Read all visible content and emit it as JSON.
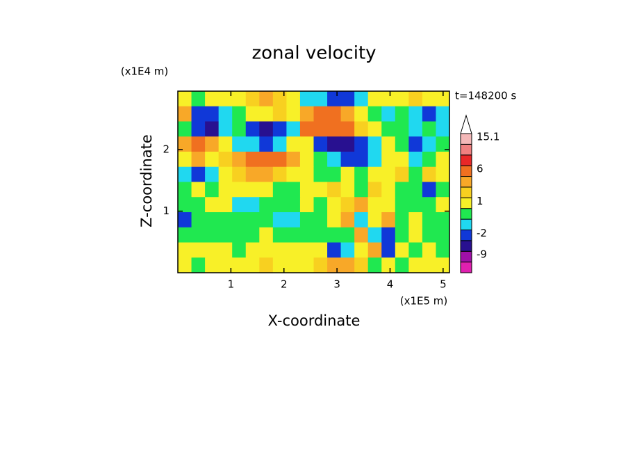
{
  "chart_data": {
    "type": "contour",
    "title": "zonal velocity",
    "x_label": "X-coordinate",
    "y_label": "Z-coordinate",
    "x_unit": "(x1E5 m)",
    "y_unit": "(x1E4 m)",
    "annotation": "t=148200 s",
    "xlim": [
      0,
      5.12
    ],
    "ylim": [
      0,
      2.95
    ],
    "xticks": [
      1,
      2,
      3,
      4,
      5
    ],
    "yticks": [
      1,
      2
    ],
    "levels": [
      -12,
      -9,
      -6,
      -2,
      -1,
      0,
      1,
      2,
      3,
      6,
      9,
      12,
      15.1
    ],
    "colors": [
      "#e020b0",
      "#a010a8",
      "#281090",
      "#1038d8",
      "#20d8f0",
      "#20e850",
      "#f8f028",
      "#f8d020",
      "#f8a828",
      "#f07020",
      "#e82828",
      "#f08080",
      "#f4b8b8",
      "#ffffff"
    ],
    "colorbar_ticks": [
      15.1,
      6,
      1,
      -2,
      -9
    ],
    "z": [
      [
        0.5,
        -0.5,
        0.5,
        0.5,
        0.5,
        1.5,
        2.5,
        1.5,
        0.5,
        -1.5,
        -1.5,
        -4,
        -4,
        -1.5,
        0.5,
        0.5,
        0.5,
        1.5,
        0.5,
        0.5
      ],
      [
        2.5,
        -4,
        -4,
        -1.5,
        -0.5,
        0.5,
        0.5,
        1.5,
        0.5,
        2.5,
        4,
        4,
        2.5,
        0.5,
        -0.5,
        -1.5,
        -0.5,
        -1.5,
        -4,
        -1.5
      ],
      [
        -0.5,
        -4,
        -7,
        -1.5,
        -0.5,
        -4,
        -7,
        -4,
        -1.5,
        3,
        5,
        4,
        3,
        1.5,
        0.5,
        -0.5,
        -0.5,
        -1.5,
        -0.5,
        -1.5
      ],
      [
        2.5,
        4,
        2.5,
        0.5,
        -1.5,
        -1.5,
        -4,
        -1.5,
        0.5,
        0.5,
        -4,
        -7,
        -7,
        -4,
        -1.5,
        0.5,
        -0.5,
        -4,
        -1.5,
        -0.5
      ],
      [
        0.5,
        2.5,
        0.5,
        1.5,
        2.5,
        4,
        4,
        4,
        2.5,
        0.5,
        -0.5,
        -1.5,
        -4,
        -4,
        -1.5,
        0.5,
        0.5,
        -1.5,
        -0.5,
        0.5
      ],
      [
        -1.5,
        -4,
        -1.5,
        0.5,
        1.5,
        2.5,
        2.5,
        1.5,
        0.5,
        0.5,
        -0.5,
        -0.5,
        0.5,
        -0.5,
        0.5,
        0.5,
        1.5,
        -0.5,
        1.5,
        0.5
      ],
      [
        -0.5,
        0.5,
        -0.5,
        0.5,
        0.5,
        0.5,
        0.5,
        -0.5,
        -0.5,
        0.5,
        0.5,
        1.5,
        0.5,
        -0.5,
        1.5,
        0.5,
        -0.5,
        -0.5,
        -4,
        -0.5
      ],
      [
        -0.5,
        -0.5,
        0.5,
        0.5,
        -1.5,
        -1.5,
        -0.5,
        -0.5,
        -0.5,
        0.5,
        -0.5,
        0.5,
        1.5,
        2.5,
        0.5,
        0.5,
        -0.5,
        -0.5,
        -0.5,
        0.5
      ],
      [
        -4,
        -0.5,
        -0.5,
        -0.5,
        -0.5,
        -0.5,
        -0.5,
        -1.5,
        -1.5,
        -0.5,
        -0.5,
        0.5,
        2.5,
        -1.5,
        0.5,
        2.5,
        -0.5,
        0.5,
        -0.5,
        -0.5
      ],
      [
        -0.5,
        -0.5,
        -0.5,
        -0.5,
        -0.5,
        -0.5,
        0.5,
        -0.5,
        -0.5,
        -0.5,
        -0.5,
        -0.5,
        -0.5,
        2.5,
        -1.5,
        -4,
        -0.5,
        0.5,
        -0.5,
        -0.5
      ],
      [
        0.5,
        0.5,
        0.5,
        0.5,
        -0.5,
        0.5,
        0.5,
        0.5,
        0.5,
        0.5,
        0.5,
        -4,
        -1.5,
        0.5,
        2.5,
        -4,
        0.5,
        -0.5,
        0.5,
        -0.5
      ],
      [
        0.5,
        -0.5,
        0.5,
        0.5,
        0.5,
        0.5,
        1.5,
        0.5,
        0.5,
        0.5,
        1.5,
        2.5,
        2.5,
        1.5,
        -0.5,
        0.5,
        -0.5,
        0.5,
        0.5,
        0.5
      ]
    ]
  }
}
